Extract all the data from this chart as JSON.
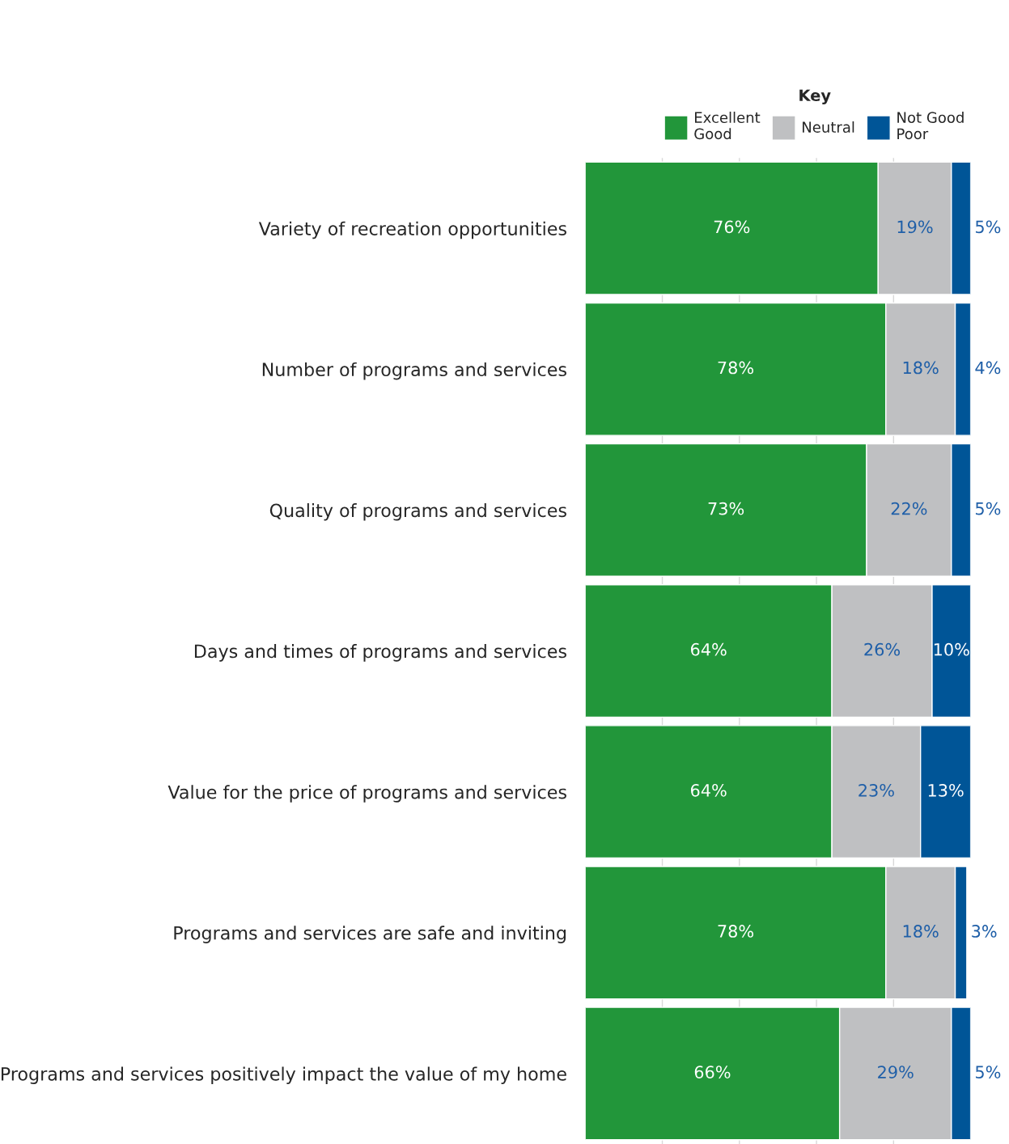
{
  "chart_data": {
    "type": "bar",
    "orientation": "horizontal",
    "stacked": true,
    "legend_title": "Key",
    "legend": "top right",
    "categories": [
      "Variety of recreation opportunities",
      "Number of programs and services",
      "Quality of programs and services",
      "Days and times of programs and services",
      "Value for the price of programs and services",
      "Programs and services are safe and inviting",
      "Programs and services positively impact the value of my home"
    ],
    "series": [
      {
        "name": "Excellent\nGood",
        "color": "#22963a",
        "values": [
          76,
          78,
          73,
          64,
          64,
          78,
          66
        ],
        "value_labels": [
          "76%",
          "78%",
          "73%",
          "64%",
          "64%",
          "78%",
          "66%"
        ]
      },
      {
        "name": "Neutral",
        "color": "#bfc0c2",
        "values": [
          19,
          18,
          22,
          26,
          23,
          18,
          29
        ],
        "value_labels": [
          "19%",
          "18%",
          "22%",
          "26%",
          "23%",
          "18%",
          "29%"
        ]
      },
      {
        "name": "Not Good\nPoor",
        "color": "#005597",
        "values": [
          5,
          4,
          5,
          10,
          13,
          3,
          5
        ],
        "value_labels": [
          "5%",
          "4%",
          "5%",
          "10%",
          "13%",
          "3%",
          "5%"
        ]
      }
    ],
    "xlim": [
      0,
      100
    ],
    "xticks": [
      {
        "value": 20,
        "label": null
      },
      {
        "value": 40,
        "label": null
      },
      {
        "value": 60,
        "label": null
      },
      {
        "value": 80,
        "label": null
      }
    ],
    "grid": "x",
    "tick_labels": "y"
  }
}
